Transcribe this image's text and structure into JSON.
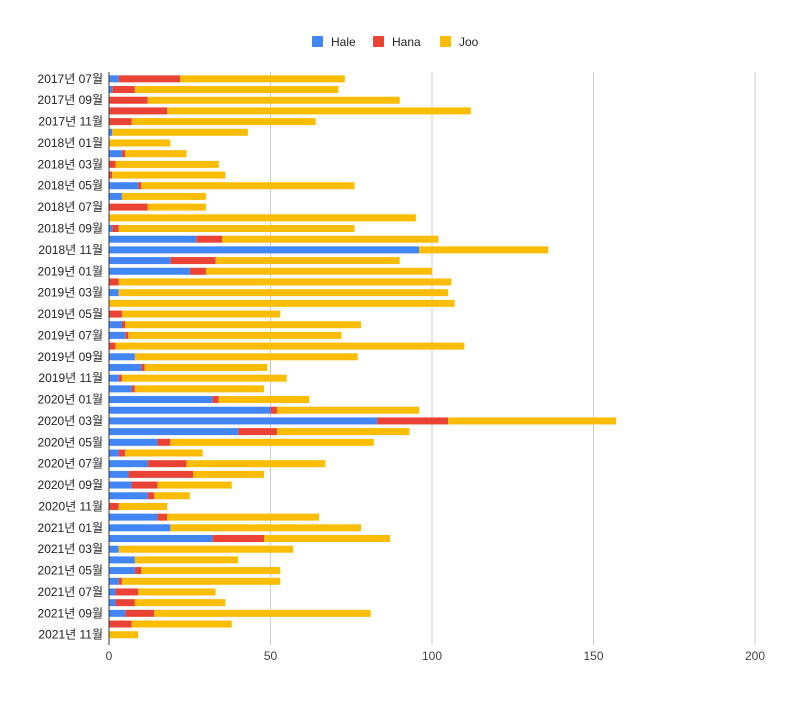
{
  "chart_data": {
    "type": "bar",
    "orientation": "horizontal",
    "stacked": true,
    "title": "",
    "xlabel": "",
    "ylabel": "",
    "xlim": [
      0,
      200
    ],
    "x_ticks": [
      0,
      50,
      100,
      150,
      200
    ],
    "grid": true,
    "legend_position": "top",
    "categories": [
      "2017년 07월",
      "2017년 08월",
      "2017년 09월",
      "2017년 10월",
      "2017년 11월",
      "2017년 12월",
      "2018년 01월",
      "2018년 02월",
      "2018년 03월",
      "2018년 04월",
      "2018년 05월",
      "2018년 06월",
      "2018년 07월",
      "2018년 08월",
      "2018년 09월",
      "2018년 10월",
      "2018년 11월",
      "2018년 12월",
      "2019년 01월",
      "2019년 02월",
      "2019년 03월",
      "2019년 04월",
      "2019년 05월",
      "2019년 06월",
      "2019년 07월",
      "2019년 08월",
      "2019년 09월",
      "2019년 10월",
      "2019년 11월",
      "2019년 12월",
      "2020년 01월",
      "2020년 02월",
      "2020년 03월",
      "2020년 04월",
      "2020년 05월",
      "2020년 06월",
      "2020년 07월",
      "2020년 08월",
      "2020년 09월",
      "2020년 10월",
      "2020년 11월",
      "2020년 12월",
      "2021년 01월",
      "2021년 02월",
      "2021년 03월",
      "2021년 04월",
      "2021년 05월",
      "2021년 06월",
      "2021년 07월",
      "2021년 08월",
      "2021년 09월",
      "2021년 10월",
      "2021년 11월"
    ],
    "visible_category_labels": [
      "2017년 07월",
      "2017년 09월",
      "2017년 11월",
      "2018년 01월",
      "2018년 03월",
      "2018년 05월",
      "2018년 07월",
      "2018년 09월",
      "2018년 11월",
      "2019년 01월",
      "2019년 03월",
      "2019년 05월",
      "2019년 07월",
      "2019년 09월",
      "2019년 11월",
      "2020년 01월",
      "2020년 03월",
      "2020년 05월",
      "2020년 07월",
      "2020년 09월",
      "2020년 11월",
      "2021년 01월",
      "2021년 03월",
      "2021년 05월",
      "2021년 07월",
      "2021년 09월",
      "2021년 11월"
    ],
    "series": [
      {
        "name": "Hale",
        "color": "#4285f4",
        "values": [
          3,
          1,
          0,
          0,
          0,
          1,
          0,
          4,
          0,
          0,
          9,
          4,
          0,
          0,
          1,
          27,
          96,
          19,
          25,
          0,
          3,
          0,
          0,
          4,
          5,
          0,
          8,
          10,
          3,
          7,
          32,
          50,
          83,
          40,
          15,
          3,
          12,
          6,
          7,
          12,
          0,
          15,
          19,
          32,
          3,
          8,
          8,
          3,
          2,
          2,
          5,
          0,
          0
        ]
      },
      {
        "name": "Hana",
        "color": "#ea4335",
        "values": [
          19,
          7,
          12,
          18,
          7,
          0,
          0,
          1,
          2,
          1,
          1,
          0,
          12,
          0,
          2,
          8,
          0,
          14,
          5,
          3,
          0,
          0,
          4,
          1,
          1,
          2,
          0,
          1,
          1,
          1,
          2,
          2,
          22,
          12,
          4,
          2,
          12,
          20,
          8,
          2,
          3,
          3,
          0,
          16,
          0,
          0,
          2,
          1,
          7,
          6,
          9,
          7,
          0
        ]
      },
      {
        "name": "Joo",
        "color": "#fbbc04",
        "values": [
          51,
          63,
          78,
          94,
          57,
          42,
          19,
          19,
          32,
          35,
          66,
          26,
          18,
          95,
          73,
          67,
          40,
          57,
          70,
          103,
          102,
          107,
          49,
          73,
          66,
          108,
          69,
          38,
          51,
          40,
          28,
          44,
          52,
          41,
          63,
          24,
          43,
          22,
          23,
          11,
          15,
          47,
          59,
          39,
          54,
          32,
          43,
          49,
          24,
          28,
          67,
          31,
          9
        ]
      }
    ]
  }
}
